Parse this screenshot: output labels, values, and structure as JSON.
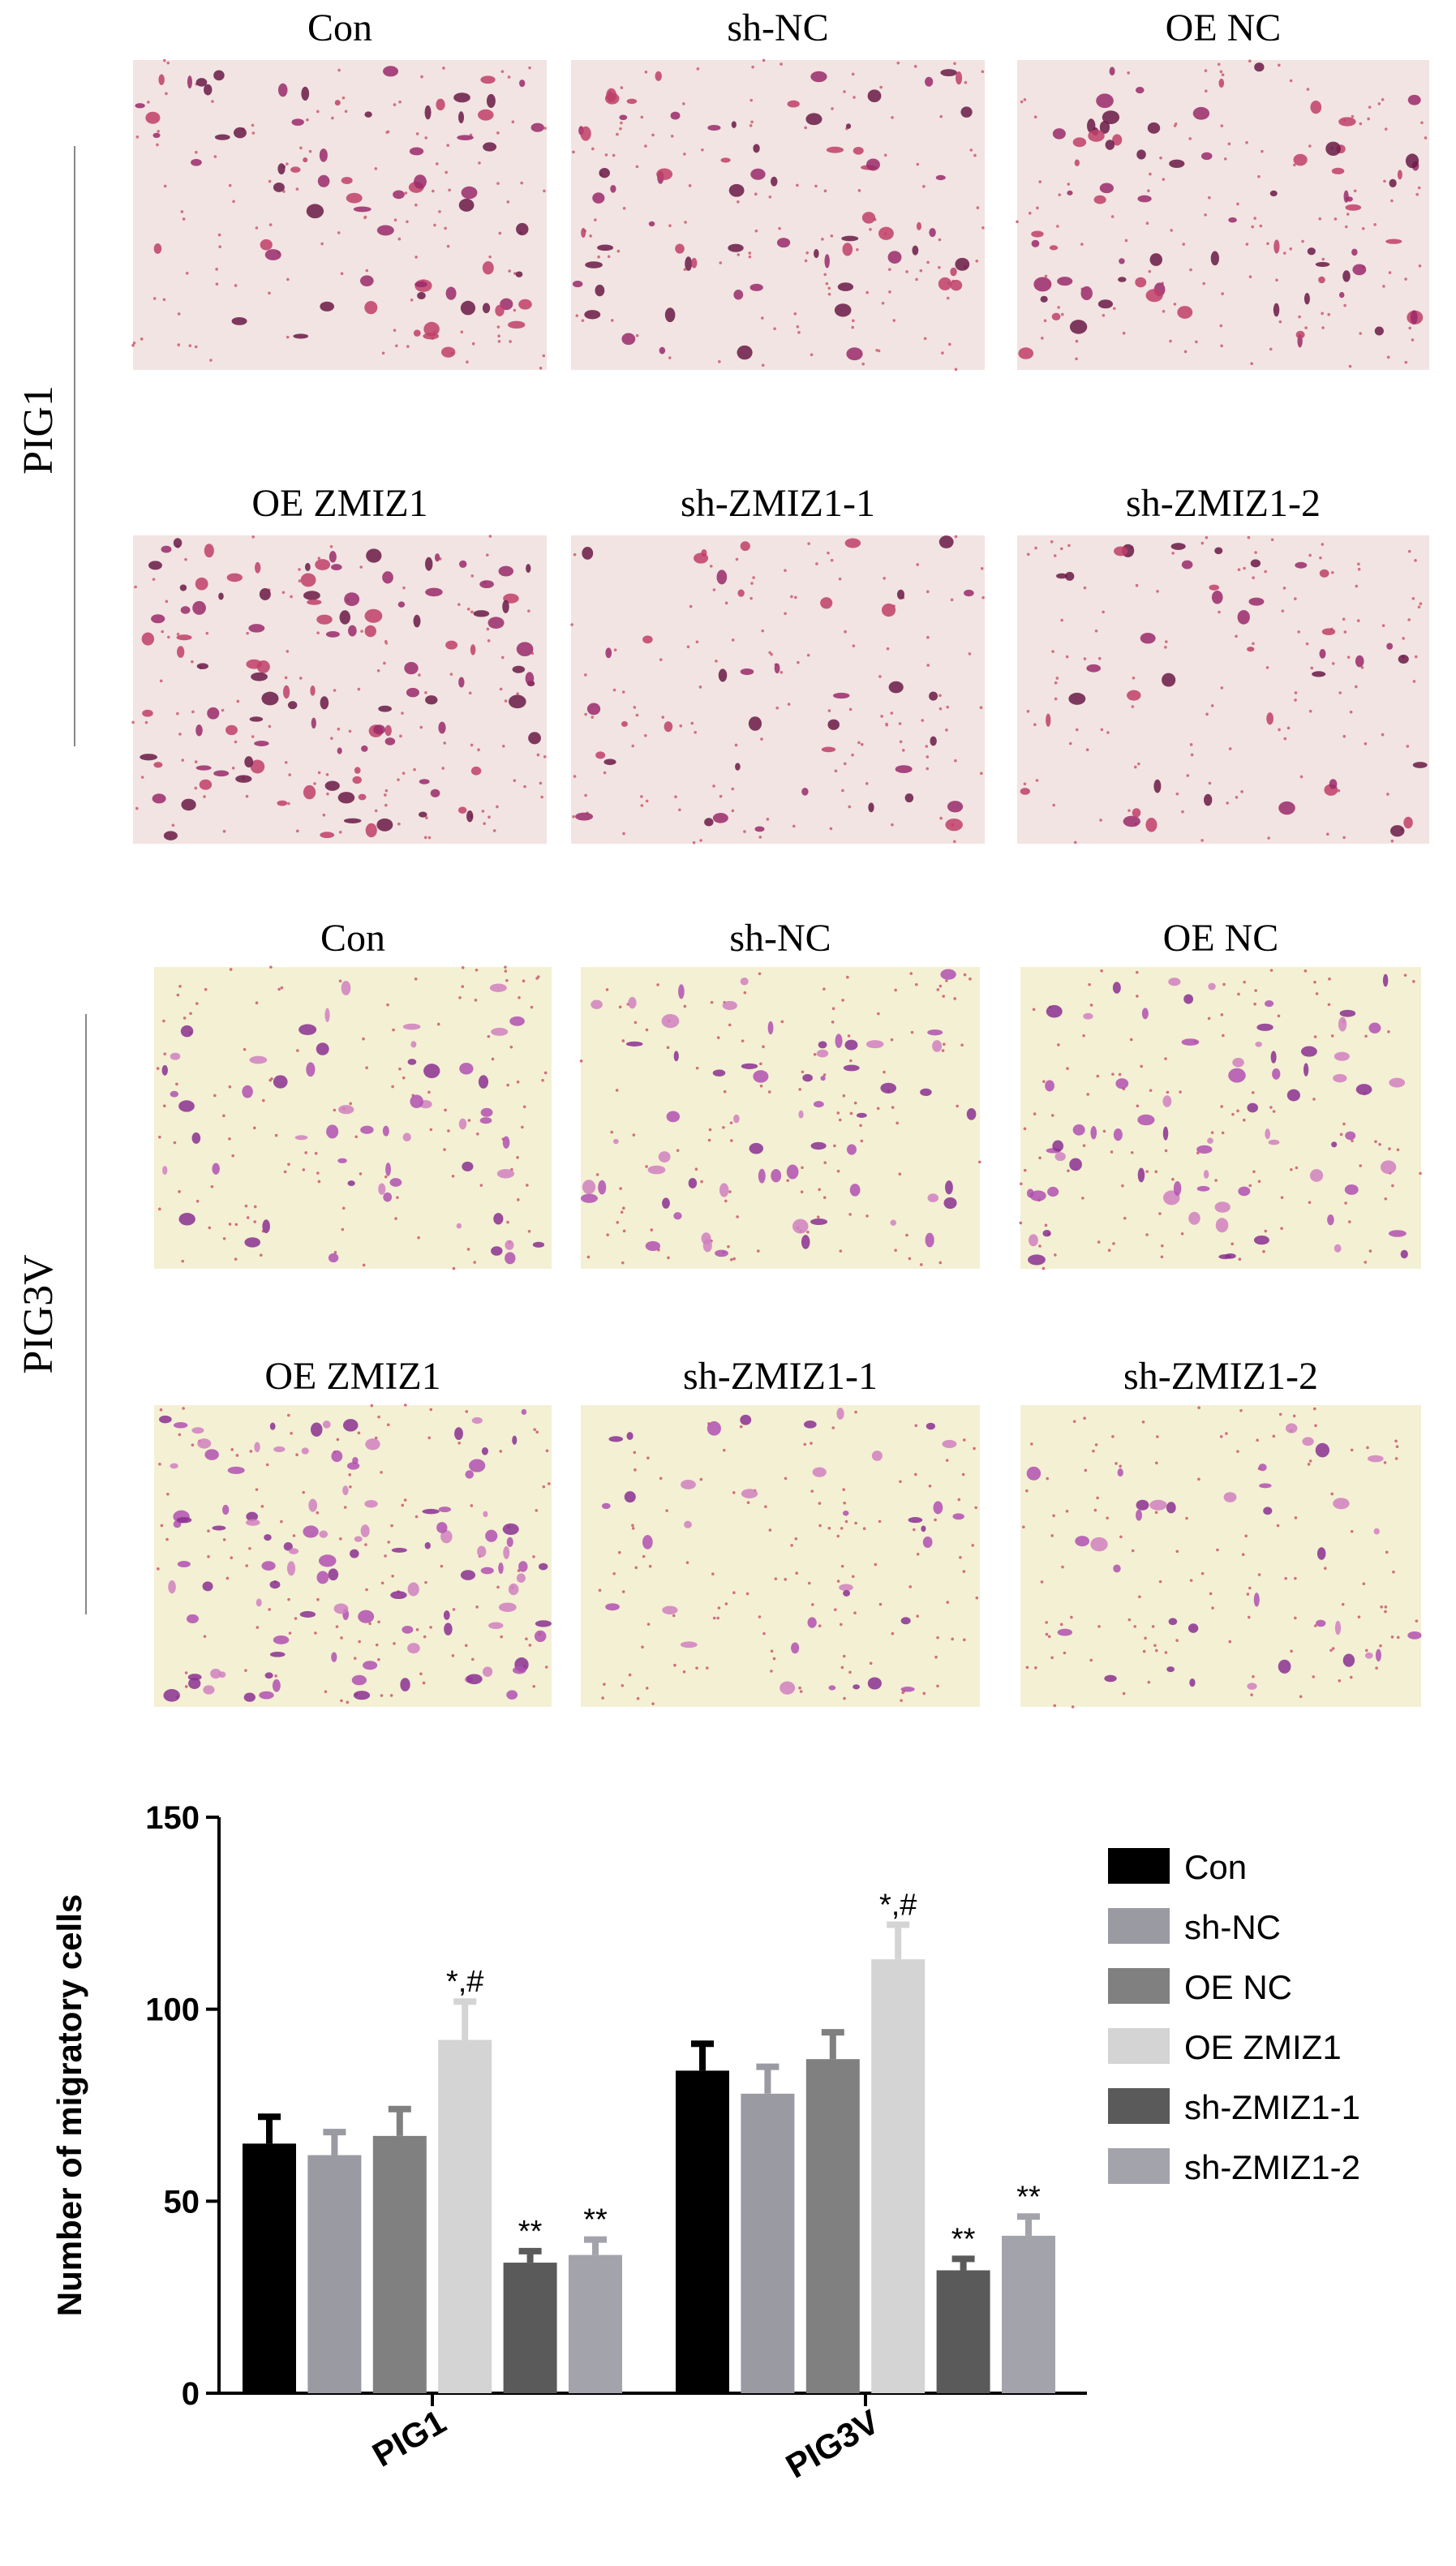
{
  "panels": [
    {
      "group": "PIG1",
      "labels": [
        "Con",
        "sh-NC",
        "OE NC",
        "OE ZMIZ1",
        "sh-ZMIZ1-1",
        "sh-ZMIZ1-2"
      ]
    },
    {
      "group": "PIG3V",
      "labels": [
        "Con",
        "sh-NC",
        "OE NC",
        "OE ZMIZ1",
        "sh-ZMIZ1-1",
        "sh-ZMIZ1-2"
      ]
    }
  ],
  "chart_data": {
    "type": "bar",
    "y_label": "Number of migratory cells",
    "categories": [
      "PIG1",
      "PIG3V"
    ],
    "series": [
      {
        "name": "Con",
        "color": "#000000",
        "values": [
          65,
          84
        ],
        "errors": [
          7,
          7
        ]
      },
      {
        "name": "sh-NC",
        "color": "#9a9aa2",
        "values": [
          62,
          78
        ],
        "errors": [
          6,
          7
        ]
      },
      {
        "name": "OE NC",
        "color": "#808080",
        "values": [
          67,
          87
        ],
        "errors": [
          7,
          7
        ]
      },
      {
        "name": "OE ZMIZ1",
        "color": "#d4d4d4",
        "values": [
          92,
          113
        ],
        "errors": [
          10,
          9
        ],
        "annotations": [
          "*,#",
          "*,#"
        ]
      },
      {
        "name": "sh-ZMIZ1-1",
        "color": "#5a5a5a",
        "values": [
          34,
          32
        ],
        "errors": [
          3,
          3
        ],
        "annotations": [
          "**",
          "**"
        ]
      },
      {
        "name": "sh-ZMIZ1-2",
        "color": "#a3a3ab",
        "values": [
          36,
          41
        ],
        "errors": [
          4,
          5
        ],
        "annotations": [
          "**",
          "**"
        ]
      }
    ],
    "ylim": [
      0,
      150
    ],
    "yticks": [
      0,
      50,
      100,
      150
    ],
    "legend": "right"
  }
}
